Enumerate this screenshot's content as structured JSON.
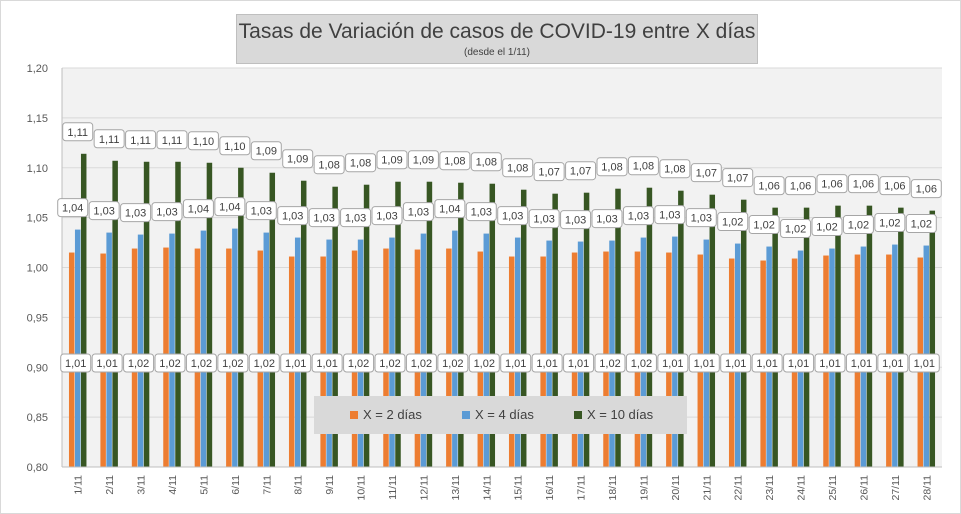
{
  "chart_data": {
    "type": "bar",
    "title": "Tasas de Variación de casos de COVID-19 entre X días",
    "subtitle": "(desde el 1/11)",
    "xlabel": "",
    "ylabel": "",
    "ylim": [
      0.8,
      1.2
    ],
    "yticks": [
      "0,80",
      "0,85",
      "0,90",
      "0,95",
      "1,00",
      "1,05",
      "1,10",
      "1,15",
      "1,20"
    ],
    "ytick_values": [
      0.8,
      0.85,
      0.9,
      0.95,
      1.0,
      1.05,
      1.1,
      1.15,
      1.2
    ],
    "grid": true,
    "legend_position": "bottom-center",
    "categories": [
      "1/11",
      "2/11",
      "3/11",
      "4/11",
      "5/11",
      "6/11",
      "7/11",
      "8/11",
      "9/11",
      "10/11",
      "11/11",
      "12/11",
      "13/11",
      "14/11",
      "15/11",
      "16/11",
      "17/11",
      "18/11",
      "19/11",
      "20/11",
      "21/11",
      "22/11",
      "23/11",
      "24/11",
      "25/11",
      "26/11",
      "27/11",
      "28/11"
    ],
    "series": [
      {
        "name": "X = 2 días",
        "color": "#ed7d31",
        "values": [
          1.015,
          1.014,
          1.019,
          1.02,
          1.019,
          1.019,
          1.017,
          1.011,
          1.011,
          1.017,
          1.019,
          1.018,
          1.019,
          1.016,
          1.011,
          1.011,
          1.015,
          1.016,
          1.016,
          1.015,
          1.013,
          1.009,
          1.007,
          1.009,
          1.012,
          1.013,
          1.013,
          1.01
        ],
        "labels": [
          "1,01",
          "1,01",
          "1,02",
          "1,02",
          "1,02",
          "1,02",
          "1,02",
          "1,01",
          "1,01",
          "1,02",
          "1,02",
          "1,02",
          "1,02",
          "1,02",
          "1,01",
          "1,01",
          "1,01",
          "1,02",
          "1,02",
          "1,01",
          "1,01",
          "1,01",
          "1,01",
          "1,01",
          "1,01",
          "1,01",
          "1,01",
          "1,01"
        ]
      },
      {
        "name": "X = 4 días",
        "color": "#5b9bd5",
        "values": [
          1.038,
          1.035,
          1.033,
          1.034,
          1.037,
          1.039,
          1.035,
          1.03,
          1.028,
          1.028,
          1.03,
          1.034,
          1.037,
          1.034,
          1.03,
          1.027,
          1.026,
          1.027,
          1.03,
          1.031,
          1.028,
          1.024,
          1.021,
          1.017,
          1.019,
          1.021,
          1.023,
          1.022
        ],
        "labels": [
          "1,04",
          "1,03",
          "1,03",
          "1,03",
          "1,04",
          "1,04",
          "1,03",
          "1,03",
          "1,03",
          "1,03",
          "1,03",
          "1,03",
          "1,04",
          "1,03",
          "1,03",
          "1,03",
          "1,03",
          "1,03",
          "1,03",
          "1,03",
          "1,03",
          "1,02",
          "1,02",
          "1,02",
          "1,02",
          "1,02",
          "1,02",
          "1,02"
        ]
      },
      {
        "name": "X = 10 días",
        "color": "#375623",
        "values": [
          1.114,
          1.107,
          1.106,
          1.106,
          1.105,
          1.1,
          1.095,
          1.087,
          1.081,
          1.083,
          1.086,
          1.086,
          1.085,
          1.084,
          1.078,
          1.074,
          1.075,
          1.079,
          1.08,
          1.077,
          1.073,
          1.068,
          1.06,
          1.06,
          1.062,
          1.062,
          1.06,
          1.057
        ],
        "labels": [
          "1,11",
          "1,11",
          "1,11",
          "1,11",
          "1,10",
          "1,10",
          "1,09",
          "1,09",
          "1,08",
          "1,08",
          "1,09",
          "1,09",
          "1,08",
          "1,08",
          "1,08",
          "1,07",
          "1,07",
          "1,08",
          "1,08",
          "1,08",
          "1,07",
          "1,07",
          "1,06",
          "1,06",
          "1,06",
          "1,06",
          "1,06",
          "1,06"
        ]
      }
    ]
  }
}
